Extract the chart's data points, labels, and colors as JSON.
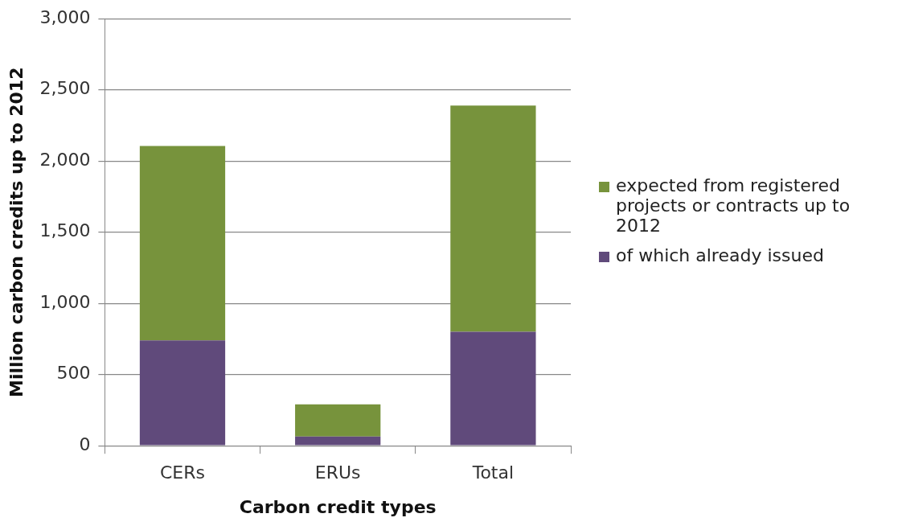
{
  "chart_data": {
    "type": "bar",
    "xlabel": "Carbon credit types",
    "ylabel": "Million carbon credits up to 2012",
    "categories": [
      "CERs",
      "ERUs",
      "Total"
    ],
    "stacked": true,
    "series": [
      {
        "name": "of which already issued",
        "color": "#604a7b",
        "values": [
          740,
          64,
          800
        ]
      },
      {
        "name": "expected from registered projects or contracts up to 2012",
        "color": "#77933c",
        "values": [
          1365,
          226,
          1590
        ]
      }
    ],
    "ylim": [
      0,
      3000
    ],
    "yticks": [
      {
        "value": 0,
        "label": "0"
      },
      {
        "value": 500,
        "label": "500"
      },
      {
        "value": 1000,
        "label": "1,000"
      },
      {
        "value": 1500,
        "label": "1,500"
      },
      {
        "value": 2000,
        "label": "2,000"
      },
      {
        "value": 2500,
        "label": "2,500"
      },
      {
        "value": 3000,
        "label": "3,000"
      }
    ],
    "grid": "y",
    "legend": "right"
  }
}
